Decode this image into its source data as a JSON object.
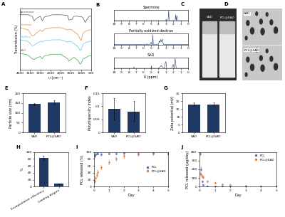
{
  "chart_data": [
    {
      "panel": "A",
      "type": "line",
      "xlabel": "υ (cm⁻¹)",
      "ylabel": "Transmission (%)",
      "x": [
        4000,
        3600,
        3400,
        3300,
        3200,
        3000,
        2900,
        2800,
        2400,
        2000,
        1650,
        1600,
        1450,
        1350,
        1150,
        1050,
        1000,
        900,
        800,
        600,
        500
      ],
      "series": [
        {
          "name": "Spermine",
          "color": "#555555",
          "values": [
            3.6,
            3.6,
            3.5,
            3.2,
            3.35,
            3.5,
            3.2,
            3.45,
            3.6,
            3.6,
            3.55,
            3.25,
            3.3,
            3.5,
            3.5,
            3.45,
            3.5,
            3.4,
            3.1,
            3.5,
            3.5
          ]
        },
        {
          "name": "Dextran",
          "color": "#e08a3c",
          "values": [
            2.75,
            2.6,
            2.2,
            2.25,
            2.4,
            2.6,
            2.5,
            2.65,
            2.75,
            2.75,
            2.6,
            2.65,
            2.6,
            2.5,
            2.3,
            2.0,
            1.9,
            2.4,
            2.5,
            2.6,
            2.6
          ]
        },
        {
          "name": "PoxDex",
          "color": "#5bc8e8",
          "values": [
            1.95,
            1.85,
            1.55,
            1.6,
            1.7,
            1.85,
            1.8,
            1.9,
            1.95,
            1.95,
            1.8,
            1.85,
            1.8,
            1.7,
            1.5,
            1.25,
            1.3,
            1.65,
            1.75,
            1.85,
            1.85
          ]
        },
        {
          "name": "SAD",
          "color": "#3aa54a",
          "values": [
            1.05,
            0.95,
            0.7,
            0.65,
            0.75,
            0.85,
            0.7,
            0.9,
            1.0,
            1.0,
            0.7,
            0.55,
            0.7,
            0.8,
            0.6,
            0.35,
            0.4,
            0.7,
            0.75,
            0.9,
            0.9
          ]
        }
      ],
      "xlim": [
        4000,
        500
      ],
      "xticks": [
        4000,
        3500,
        3000,
        2500,
        2000,
        1500,
        1000,
        500
      ],
      "ylim": [
        0,
        4
      ],
      "tick_labels": "x"
    },
    {
      "panel": "B",
      "type": "line",
      "xlabel": "δ (ppm)",
      "color": "#1f3864",
      "xlim": [
        10,
        0
      ],
      "xticks": [
        10,
        9,
        8,
        7,
        6,
        5,
        4,
        3,
        2,
        1,
        0
      ],
      "ylim": [
        0,
        1.1
      ],
      "tick_labels": "x",
      "stack": [
        {
          "title": "Spermine",
          "x": [
            10,
            3.0,
            2.95,
            2.9,
            2.7,
            2.62,
            2.55,
            1.75,
            1.68,
            1.6,
            1.52,
            1.45,
            1.38,
            0
          ],
          "values": [
            0,
            0,
            0.15,
            0,
            0,
            1.0,
            0,
            0,
            0.6,
            0,
            0.5,
            0,
            0,
            0
          ]
        },
        {
          "title": "Partially oxidized dextran",
          "x": [
            10,
            5.6,
            5.55,
            5.5,
            5.1,
            5.0,
            4.9,
            4.8,
            4.75,
            4.7,
            4.0,
            3.9,
            3.8,
            3.7,
            3.6,
            3.5,
            3.4,
            3.3,
            0
          ],
          "values": [
            0,
            0,
            0.08,
            0,
            0,
            0.25,
            0,
            0,
            1.0,
            0,
            0,
            0.35,
            0.2,
            0.5,
            0.3,
            0.55,
            0.2,
            0,
            0
          ]
        },
        {
          "title": "SAD",
          "x": [
            10,
            7.4,
            7.3,
            7.2,
            5.0,
            4.95,
            4.9,
            4.0,
            3.7,
            3.6,
            3.5,
            3.2,
            3.1,
            3.0,
            2.9,
            2.2,
            2.1,
            2.0,
            1.9,
            1.8,
            1.75,
            1.7,
            1.6,
            0
          ],
          "values": [
            0,
            0,
            0.15,
            0,
            0,
            0.25,
            0,
            0,
            0.2,
            0.3,
            0.15,
            0,
            0.5,
            0.7,
            0,
            0,
            0.3,
            0.4,
            0,
            0.6,
            1.0,
            0.7,
            0,
            0
          ]
        }
      ]
    },
    {
      "panel": "E",
      "type": "bar",
      "ylabel": "Particle size (nm)",
      "categories": [
        "SAD",
        "PCL@SAD"
      ],
      "values": [
        145,
        155
      ],
      "errors": [
        5,
        8
      ],
      "color": "#1f3864",
      "ylim": [
        0,
        200
      ],
      "yticks": [
        0,
        50,
        100,
        150,
        200
      ]
    },
    {
      "panel": "F",
      "type": "bar",
      "ylabel": "Polydispersity index",
      "categories": [
        "SAD",
        "PCL@SAD"
      ],
      "values": [
        0.09,
        0.08
      ],
      "errors": [
        0.04,
        0.04
      ],
      "color": "#1f3864",
      "ylim": [
        0,
        0.15
      ],
      "yticks": [
        0,
        0.05,
        0.1,
        0.15
      ]
    },
    {
      "panel": "G",
      "type": "bar",
      "ylabel": "Zeta potential (mV)",
      "categories": [
        "SAD",
        "PCL@SAD"
      ],
      "values": [
        18,
        18
      ],
      "errors": [
        1,
        1
      ],
      "color": "#1f3864",
      "ylim": [
        0,
        25
      ],
      "yticks": [
        0,
        5,
        10,
        15,
        20,
        25
      ]
    },
    {
      "panel": "H",
      "type": "bar",
      "ylabel": "%",
      "categories": [
        "Encapsulation efficiency",
        "Loading degree"
      ],
      "values": [
        82,
        8
      ],
      "errors": [
        6,
        1
      ],
      "color": "#1f3864",
      "ylim": [
        0,
        100
      ],
      "yticks": [
        0,
        20,
        40,
        60,
        80,
        100
      ]
    },
    {
      "panel": "I",
      "type": "scatter",
      "xlabel": "Day",
      "ylabel": "PCL released (%)",
      "marker": "o",
      "legend": "center right",
      "x": [
        0.04,
        0.08,
        0.17,
        0.25,
        0.5,
        1,
        1.5,
        2,
        3,
        4,
        5
      ],
      "series": [
        {
          "name": "PCL",
          "color": "#4a72b5",
          "values": [
            88,
            92,
            95,
            95,
            93,
            95,
            95,
            96,
            95,
            96,
            95
          ],
          "errors": [
            5,
            4,
            3,
            3,
            4,
            3,
            3,
            3,
            3,
            3,
            3
          ]
        },
        {
          "name": "PCL@SAD",
          "color": "#e0803a",
          "values": [
            15,
            25,
            33,
            42,
            55,
            70,
            80,
            88,
            92,
            95,
            95
          ],
          "errors": [
            4,
            5,
            5,
            5,
            6,
            6,
            5,
            5,
            4,
            4,
            4
          ]
        }
      ],
      "xlim": [
        0,
        5
      ],
      "xticks": [
        0,
        1,
        2,
        3,
        4,
        5
      ],
      "ylim": [
        0,
        100
      ],
      "yticks": [
        0,
        20,
        40,
        60,
        80,
        100
      ]
    },
    {
      "panel": "J",
      "type": "scatter",
      "xlabel": "Day",
      "ylabel": "PCL released (μg/day)",
      "marker": "o",
      "legend": "upper right",
      "x": [
        0.04,
        0.08,
        0.17,
        0.25,
        0.5,
        1,
        1.5,
        2,
        3,
        4,
        5
      ],
      "series": [
        {
          "name": "PCL",
          "color": "#4a72b5",
          "values": [
            380,
            200,
            60,
            20,
            5,
            2,
            1,
            1,
            0,
            0,
            0
          ],
          "errors": [
            15,
            20,
            10,
            5,
            3,
            2,
            1,
            1,
            1,
            1,
            1
          ]
        },
        {
          "name": "PCL@SAD",
          "color": "#e0803a",
          "values": [
            150,
            140,
            120,
            110,
            60,
            40,
            25,
            20,
            8,
            4,
            2
          ],
          "errors": [
            20,
            20,
            15,
            15,
            10,
            8,
            6,
            5,
            3,
            2,
            2
          ]
        }
      ],
      "xlim": [
        0,
        5
      ],
      "xticks": [
        0,
        1,
        2,
        3,
        4,
        5
      ],
      "ylim": [
        0,
        400
      ],
      "yticks": [
        0,
        100,
        200,
        300,
        400
      ]
    }
  ],
  "images": [
    {
      "panel": "C",
      "labels": [
        "SAD",
        "PCL@SAD"
      ]
    },
    {
      "panel": "D",
      "labels": [
        "SAD",
        "PCL@SAD"
      ]
    }
  ]
}
